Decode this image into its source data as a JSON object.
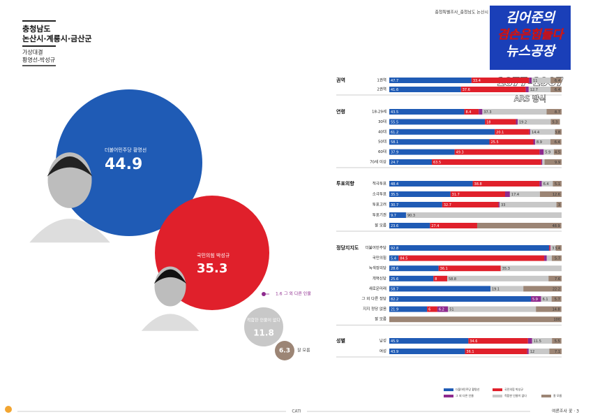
{
  "page": {
    "region": "충청남도",
    "district": "논산시·계룡시·금산군",
    "matchup_label": "가상대결",
    "matchup": "황명선-박성규",
    "survey_tag": "충청특별조사_충청남도 논산시",
    "logo_line1": "김어준의",
    "logo_line2": "겸손은힘들다",
    "logo_line3": "뉴스공장",
    "phone": "1877-1907",
    "method": "ARS 방식",
    "footer_center": "CATI",
    "footer_right": "여론조사 꽃 · 3"
  },
  "chart_data": [
    {
      "type": "bubble",
      "labels": [
        "더불어민주당 황명선",
        "국민의힘 박성규",
        "그 외 다른 인물",
        "적합한 인물이 없다",
        "잘 모름"
      ],
      "values": [
        44.9,
        35.3,
        1.6,
        11.8,
        6.3
      ],
      "colors": [
        "#1f5bb5",
        "#e0202b",
        "#8e2a8e",
        "#c8c8c8",
        "#9c8575"
      ]
    },
    {
      "type": "stacked-bar",
      "xlim": [
        0,
        100
      ],
      "series": [
        {
          "name": "더불어민주당 황명선",
          "color": "#1f5bb5"
        },
        {
          "name": "국민의힘 박성규",
          "color": "#e0202b"
        },
        {
          "name": "그 외 다른 인물",
          "color": "#8e2a8e"
        },
        {
          "name": "적합한 인물이 없다",
          "color": "#c8c8c8"
        },
        {
          "name": "잘 모름",
          "color": "#9c8575"
        }
      ],
      "groups": [
        {
          "name": "권역",
          "rows": [
            {
              "label": "1권역",
              "values": [
                47.7,
                33.4,
                1.5,
                11.0,
                6.4
              ]
            },
            {
              "label": "2권역",
              "values": [
                41.6,
                37.6,
                1.7,
                12.7,
                6.4
              ]
            }
          ]
        },
        {
          "name": "연령",
          "rows": [
            {
              "label": "18-29세",
              "values": [
                43.5,
                8.4,
                2.1,
                37.3,
                8.7
              ]
            },
            {
              "label": "30대",
              "values": [
                55.5,
                18.0,
                1.0,
                19.2,
                5.3
              ]
            },
            {
              "label": "40대",
              "values": [
                61.2,
                20.1,
                0.5,
                14.4,
                3.8
              ]
            },
            {
              "label": "50대",
              "values": [
                58.1,
                25.5,
                1.0,
                8.9,
                6.4
              ]
            },
            {
              "label": "60대",
              "values": [
                37.9,
                49.3,
                2.4,
                5.9,
                4.5
              ]
            },
            {
              "label": "70세 이상",
              "values": [
                24.7,
                63.5,
                0.6,
                1.3,
                9.9
              ]
            }
          ]
        },
        {
          "name": "투표의향",
          "rows": [
            {
              "label": "적극투표",
              "values": [
                48.4,
                38.8,
                1.3,
                6.4,
                5.1
              ]
            },
            {
              "label": "소극투표",
              "values": [
                35.5,
                31.7,
                2.8,
                17.4,
                12.6
              ]
            },
            {
              "label": "투표고려",
              "values": [
                30.7,
                32.7,
                0.6,
                33.0,
                3.0
              ]
            },
            {
              "label": "투표기권",
              "values": [
                9.7,
                0,
                0,
                90.3,
                0
              ]
            },
            {
              "label": "잘 모름",
              "values": [
                23.6,
                27.4,
                0,
                0,
                48.9
              ]
            }
          ]
        },
        {
          "name": "정당지지도",
          "rows": [
            {
              "label": "더불어민주당",
              "values": [
                92.8,
                0.5,
                0.3,
                3.0,
                3.4
              ]
            },
            {
              "label": "국민의힘",
              "values": [
                5.4,
                84.5,
                1.5,
                2.9,
                5.7
              ]
            },
            {
              "label": "녹색정의당",
              "values": [
                28.6,
                36.1,
                0,
                35.3,
                0
              ]
            },
            {
              "label": "개혁신당",
              "values": [
                25.6,
                8.0,
                0,
                58.8,
                7.6
              ]
            },
            {
              "label": "새로운미래",
              "values": [
                58.7,
                0,
                0,
                19.1,
                22.2
              ]
            },
            {
              "label": "그 외 다른 정당",
              "values": [
                82.2,
                0,
                5.9,
                6.1,
                5.7
              ]
            },
            {
              "label": "지지 정당 없음",
              "values": [
                21.9,
                6.0,
                6.2,
                51.0,
                14.8
              ]
            },
            {
              "label": "잘 모름",
              "values": [
                0,
                0,
                0,
                0,
                100.0
              ]
            }
          ]
        },
        {
          "name": "성별",
          "rows": [
            {
              "label": "남성",
              "values": [
                45.9,
                34.6,
                2.4,
                11.5,
                5.5
              ]
            },
            {
              "label": "여성",
              "values": [
                43.9,
                36.1,
                0.9,
                12.0,
                7.1
              ]
            }
          ]
        }
      ]
    }
  ]
}
